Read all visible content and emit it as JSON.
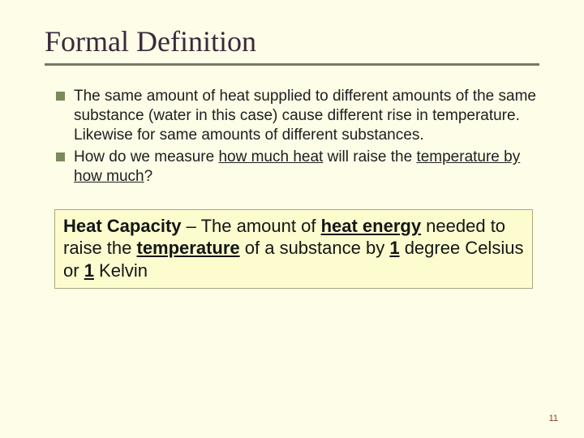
{
  "title": "Formal Definition",
  "bullets": [
    {
      "pre": "The same amount of heat supplied to different amounts of the same substance (water in this case) cause different rise in temperature. Likewise for same amounts of different substances."
    }
  ],
  "bullet2": {
    "a": "How do we measure ",
    "u1": "how much heat",
    "b": " will raise the ",
    "u2": "temperature by how much",
    "c": "?"
  },
  "def": {
    "term": "Heat Capacity",
    "dash": " – The amount of ",
    "heat_energy": "heat energy",
    "mid1": " needed to raise the ",
    "temperature": "temperature",
    "mid2": " of a substance by ",
    "one1": "1",
    "deg": " degree Celsius or ",
    "one2": "1",
    "kelvin": " Kelvin"
  },
  "page_number": "11",
  "colors": {
    "background": "#fdfde8",
    "title_text": "#3a2a3a",
    "rule": "#7a7a5a",
    "bullet_square": "#7a8a5a",
    "box_bg": "#fcfccf",
    "box_border": "#a8a880",
    "page_num": "#8a3a2a"
  }
}
